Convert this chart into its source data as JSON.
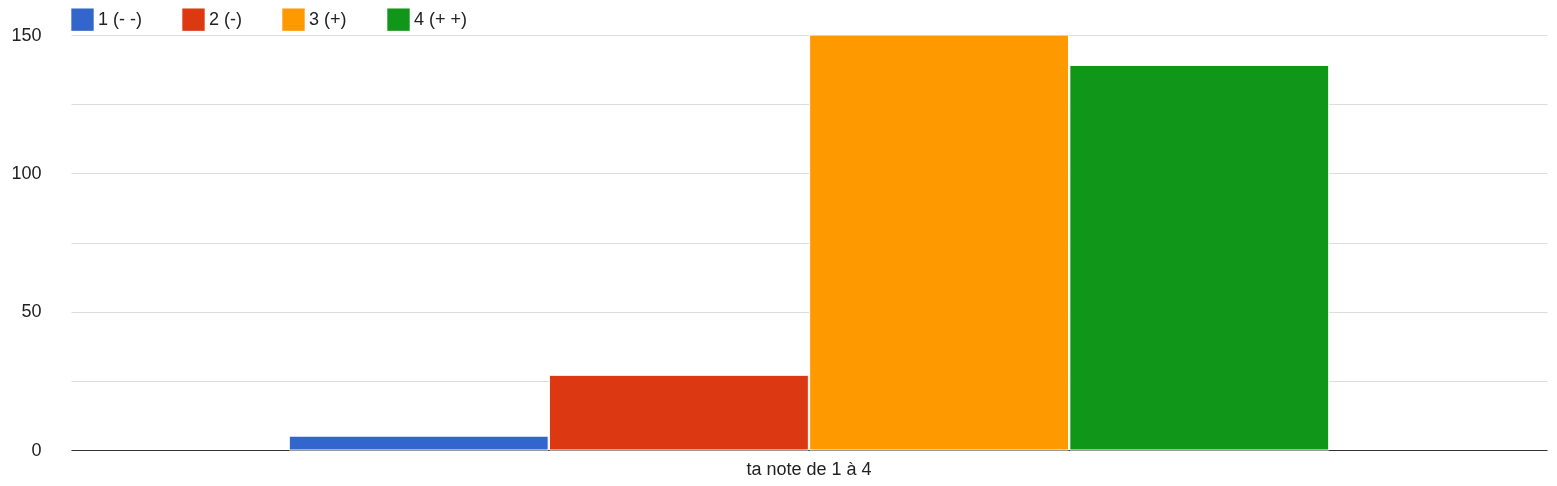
{
  "chart_data": {
    "type": "bar",
    "categories": [
      "ta note de 1 à 4"
    ],
    "series": [
      {
        "name": "1 (- -)",
        "color": "#3366cc",
        "values": [
          5
        ]
      },
      {
        "name": "2 (-)",
        "color": "#dc3912",
        "values": [
          27
        ]
      },
      {
        "name": "3 (+)",
        "color": "#ff9900",
        "values": [
          150
        ]
      },
      {
        "name": "4 (+ +)",
        "color": "#109618",
        "values": [
          139
        ]
      }
    ],
    "ylim": [
      0,
      150
    ],
    "yticks": [
      0,
      {
        "value": 25,
        "label": null
      },
      50,
      {
        "value": 75,
        "label": null
      },
      100,
      {
        "value": 125,
        "label": null
      },
      150
    ],
    "grid": "y",
    "legend": "top left"
  }
}
